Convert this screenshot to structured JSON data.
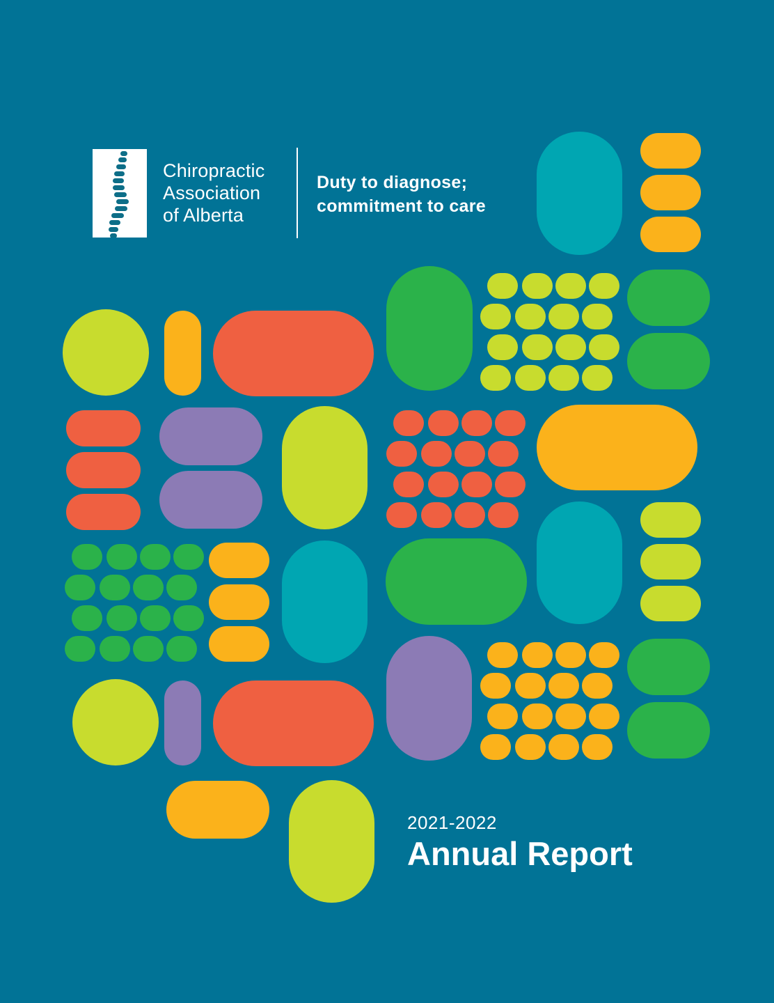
{
  "organization": {
    "name_lines": [
      "Chiropractic",
      "Association",
      "of Alberta"
    ],
    "logo": "spine-logo-icon"
  },
  "tagline": {
    "lines": [
      "Duty to diagnose;",
      "commitment to care"
    ]
  },
  "report": {
    "year": "2021-2022",
    "title": "Annual Report"
  },
  "colors": {
    "background": "#017396",
    "lime": "#C8DC2E",
    "orange": "#FBB21B",
    "coral": "#EF6041",
    "purple": "#8C7BB5",
    "green": "#2BB24A",
    "teal": "#00A6B2",
    "logo_spine": "#0D6E88"
  }
}
